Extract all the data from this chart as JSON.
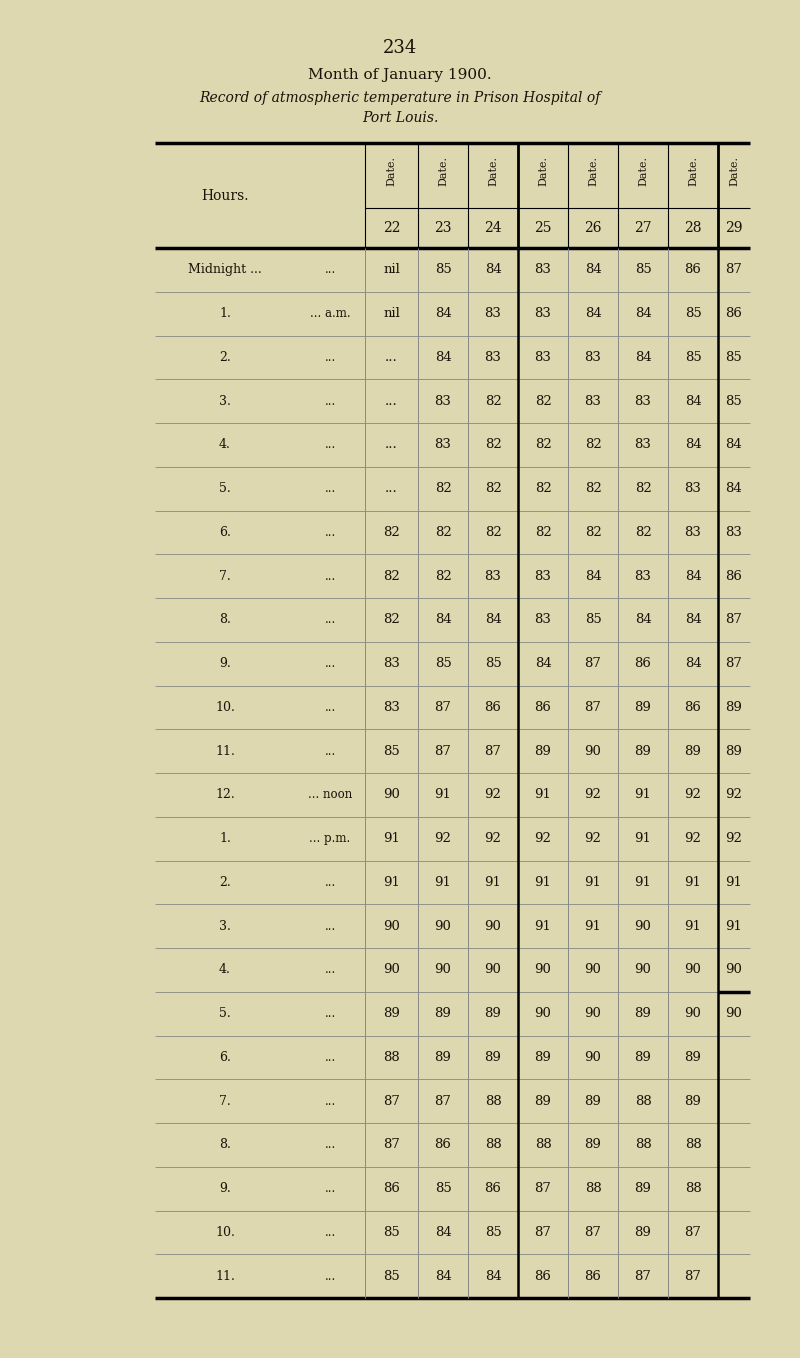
{
  "page_number": "234",
  "title_line1": "Month of January 1900.",
  "title_line2": "Record of atmospheric temperature in Prison Hospital of",
  "title_line3": "Port Louis.",
  "date_nums": [
    22,
    23,
    24,
    25,
    26,
    27,
    28,
    29
  ],
  "hours": [
    "Midnight ...",
    "1.",
    "2.",
    "3.",
    "4.",
    "5.",
    "6.",
    "7.",
    "8.",
    "9.",
    "10.",
    "11.",
    "12.",
    "1.",
    "2.",
    "3.",
    "4.",
    "5.",
    "6.",
    "7.",
    "8.",
    "9.",
    "10.",
    "11."
  ],
  "hour_suffix": [
    "...",
    "... a.m.",
    "...",
    "...",
    "...",
    "...",
    "...",
    "...",
    "...",
    "...",
    "...",
    "...",
    "... noon",
    "... p.m.",
    "...",
    "...",
    "...",
    "...",
    "...",
    "...",
    "...",
    "...",
    "...",
    "..."
  ],
  "col_d22": [
    "nil",
    "nil",
    "...",
    "...",
    "...",
    "...",
    "82",
    "82",
    "82",
    "83",
    "83",
    "85",
    "90",
    "91",
    "91",
    "90",
    "90",
    "89",
    "88",
    "87",
    "87",
    "86",
    "85",
    "85"
  ],
  "data": [
    [
      85,
      84,
      83,
      84,
      85,
      86,
      87
    ],
    [
      84,
      83,
      83,
      84,
      84,
      85,
      86
    ],
    [
      84,
      83,
      83,
      83,
      84,
      85,
      85
    ],
    [
      83,
      82,
      82,
      83,
      83,
      84,
      85
    ],
    [
      83,
      82,
      82,
      82,
      83,
      84,
      84
    ],
    [
      82,
      82,
      82,
      82,
      82,
      83,
      84
    ],
    [
      82,
      82,
      82,
      82,
      82,
      83,
      83
    ],
    [
      82,
      83,
      83,
      84,
      83,
      84,
      86
    ],
    [
      84,
      84,
      83,
      85,
      84,
      84,
      87
    ],
    [
      85,
      85,
      84,
      87,
      86,
      84,
      87
    ],
    [
      87,
      86,
      86,
      87,
      89,
      86,
      89
    ],
    [
      87,
      87,
      89,
      90,
      89,
      89,
      89
    ],
    [
      91,
      92,
      91,
      92,
      91,
      92,
      92
    ],
    [
      92,
      92,
      92,
      92,
      91,
      92,
      92
    ],
    [
      91,
      91,
      91,
      91,
      91,
      91,
      91
    ],
    [
      90,
      90,
      91,
      91,
      90,
      91,
      91
    ],
    [
      90,
      90,
      90,
      90,
      90,
      90,
      90
    ],
    [
      89,
      89,
      90,
      90,
      89,
      90,
      90
    ],
    [
      89,
      89,
      89,
      90,
      89,
      89,
      ""
    ],
    [
      87,
      88,
      89,
      89,
      88,
      89,
      ""
    ],
    [
      86,
      88,
      88,
      89,
      88,
      88,
      ""
    ],
    [
      85,
      86,
      87,
      88,
      89,
      88,
      ""
    ],
    [
      84,
      85,
      87,
      87,
      89,
      87,
      ""
    ],
    [
      84,
      84,
      86,
      86,
      87,
      87,
      ""
    ]
  ],
  "bg_color": "#ddd8b0",
  "text_color": "#1a1208"
}
